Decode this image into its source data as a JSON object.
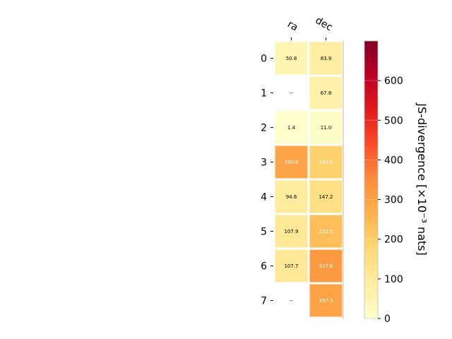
{
  "chart_data": {
    "type": "heatmap",
    "columns": [
      "ra",
      "dec"
    ],
    "rows": [
      "0",
      "1",
      "2",
      "3",
      "4",
      "5",
      "6",
      "7"
    ],
    "values": [
      [
        50.8,
        83.9
      ],
      [
        null,
        67.8
      ],
      [
        1.4,
        11.0
      ],
      [
        290.8,
        193.5
      ],
      [
        94.6,
        147.2
      ],
      [
        107.9,
        232.5
      ],
      [
        107.7,
        317.8
      ],
      [
        null,
        297.3
      ]
    ],
    "cell_labels": [
      [
        "50.8",
        "83.9"
      ],
      [
        "--",
        "67.8"
      ],
      [
        "1.4",
        "11.0"
      ],
      [
        "290.8",
        "193.5"
      ],
      [
        "94.6",
        "147.2"
      ],
      [
        "107.9",
        "232.5"
      ],
      [
        "107.7",
        "317.8"
      ],
      [
        "--",
        "297.3"
      ]
    ],
    "colorbar": {
      "label": "JS-divergence [×10⁻³ nats]",
      "ticks": [
        "0",
        "100",
        "200",
        "300",
        "400",
        "500",
        "600"
      ],
      "tick_values": [
        0,
        100,
        200,
        300,
        400,
        500,
        600
      ],
      "range": [
        0,
        700
      ],
      "colormap": "YlOrRd"
    }
  }
}
